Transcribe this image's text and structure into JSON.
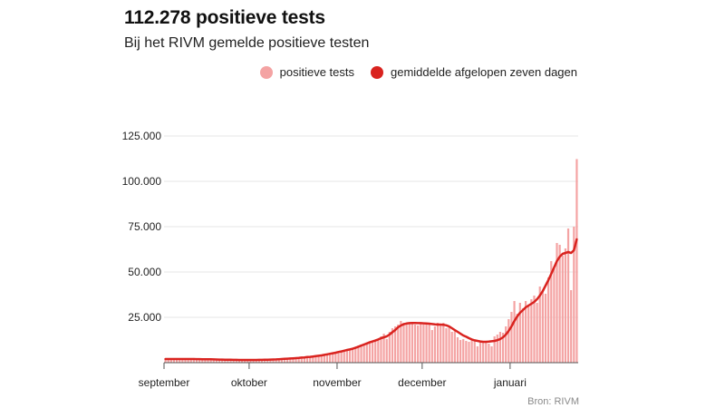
{
  "header": {
    "title": "112.278 positieve tests",
    "subtitle": "Bij het RIVM gemelde positieve testen"
  },
  "source": "Bron: RIVM",
  "colors": {
    "bars": "#f4a3a3",
    "line": "#d9231f",
    "grid": "#e6e6e6",
    "axis": "#555555"
  },
  "chart_data": {
    "type": "bar",
    "title": "112.278 positieve tests",
    "subtitle": "Bij het RIVM gemelde positieve testen",
    "xlabel": "",
    "ylabel": "",
    "ylim": [
      0,
      125000
    ],
    "yticks": [
      25000,
      50000,
      75000,
      100000,
      125000
    ],
    "ytick_labels": [
      "25.000",
      "50.000",
      "75.000",
      "100.000",
      "125.000"
    ],
    "xticks": [
      {
        "label": "september",
        "day": 0
      },
      {
        "label": "oktober",
        "day": 30
      },
      {
        "label": "november",
        "day": 61
      },
      {
        "label": "december",
        "day": 91
      },
      {
        "label": "januari",
        "day": 122
      }
    ],
    "grid": true,
    "legend_position": "top-right",
    "series": [
      {
        "name": "positieve tests",
        "type": "bar",
        "values": [
          2000,
          2000,
          2100,
          2000,
          2000,
          2000,
          2000,
          2100,
          2000,
          2000,
          2000,
          2000,
          1900,
          1900,
          1900,
          1800,
          1800,
          1800,
          1700,
          1700,
          1700,
          1600,
          1600,
          1600,
          1600,
          1500,
          1500,
          1500,
          1500,
          1500,
          1500,
          1500,
          1500,
          1600,
          1600,
          1600,
          1700,
          1800,
          1800,
          1900,
          2000,
          2100,
          2200,
          2300,
          2400,
          2500,
          2600,
          2800,
          2900,
          3100,
          3200,
          3400,
          3600,
          3700,
          3900,
          4200,
          4500,
          4800,
          5100,
          5500,
          5800,
          6200,
          6600,
          7000,
          7300,
          7600,
          8200,
          8800,
          9400,
          10000,
          10600,
          11200,
          11800,
          12000,
          12200,
          13000,
          14500,
          16000,
          13000,
          17000,
          19000,
          20000,
          21000,
          23000,
          22000,
          21500,
          22000,
          22500,
          21000,
          20500,
          22000,
          21000,
          21000,
          22000,
          18000,
          20000,
          22000,
          21000,
          22000,
          19000,
          20000,
          17000,
          18000,
          14000,
          12500,
          13000,
          12000,
          11500,
          13000,
          12000,
          9000,
          11500,
          11000,
          11500,
          10500,
          9000,
          14500,
          15500,
          17000,
          16500,
          20000,
          24000,
          28000,
          34000,
          27000,
          33000,
          30000,
          34000,
          31000,
          35000,
          37000,
          33000,
          42000,
          40000,
          38000,
          47000,
          56000,
          52000,
          66000,
          65000,
          59000,
          63000,
          74000,
          40000,
          75000,
          112278
        ]
      },
      {
        "name": "gemiddelde afgelopen zeven dagen",
        "type": "line",
        "values": [
          2000,
          2000,
          2000,
          2000,
          2000,
          2000,
          2000,
          2000,
          2000,
          2000,
          2000,
          1950,
          1950,
          1900,
          1900,
          1850,
          1850,
          1800,
          1750,
          1700,
          1700,
          1650,
          1600,
          1600,
          1550,
          1550,
          1500,
          1500,
          1500,
          1500,
          1500,
          1500,
          1500,
          1550,
          1550,
          1600,
          1650,
          1700,
          1750,
          1800,
          1900,
          2000,
          2100,
          2200,
          2300,
          2400,
          2500,
          2600,
          2800,
          2900,
          3100,
          3200,
          3400,
          3600,
          3800,
          4000,
          4300,
          4600,
          4900,
          5200,
          5500,
          5900,
          6200,
          6600,
          7000,
          7300,
          7700,
          8200,
          8800,
          9400,
          10000,
          10600,
          11200,
          11700,
          12200,
          12800,
          13500,
          14000,
          14500,
          15500,
          16800,
          18000,
          19500,
          20500,
          21200,
          21600,
          21800,
          21900,
          21900,
          21800,
          21800,
          21700,
          21600,
          21500,
          21300,
          21100,
          21000,
          21000,
          20900,
          20600,
          20000,
          19000,
          18000,
          17000,
          16000,
          15000,
          14300,
          13500,
          12800,
          12300,
          12000,
          11700,
          11500,
          11500,
          11600,
          11800,
          12000,
          12400,
          13000,
          14000,
          15500,
          17500,
          20000,
          23000,
          25500,
          27500,
          29000,
          30500,
          31500,
          32500,
          33500,
          35000,
          37000,
          39500,
          42500,
          45500,
          49000,
          52500,
          56000,
          58500,
          60000,
          60500,
          61000,
          60500,
          62000,
          68000
        ]
      }
    ]
  }
}
